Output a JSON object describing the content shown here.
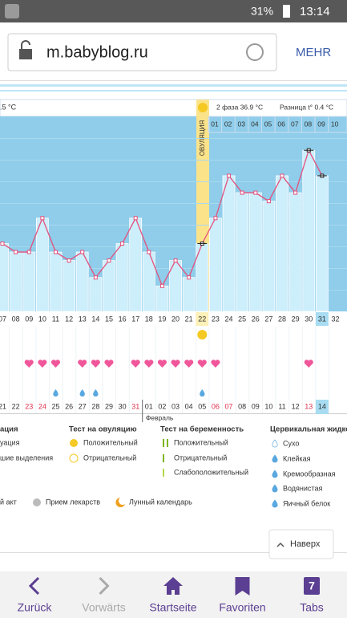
{
  "status_bar": {
    "battery": "31%",
    "time": "13:14"
  },
  "browser": {
    "url": "m.babyblog.ru",
    "menu": "MEHR"
  },
  "chart_data": {
    "type": "line",
    "phase1": ".5 °C",
    "phase2": "2 фаза 36.9 °C",
    "difference": "Разница t° 0.4 °C",
    "ovulation_label": "ОВУЛЯЦИЯ",
    "cycle_days": [
      "01",
      "02",
      "03",
      "04",
      "05",
      "06",
      "07",
      "08",
      "09",
      "10"
    ],
    "categories": [
      "07",
      "08",
      "09",
      "10",
      "11",
      "12",
      "13",
      "14",
      "15",
      "16",
      "17",
      "18",
      "19",
      "20",
      "21",
      "22",
      "23",
      "24",
      "25",
      "26",
      "27",
      "28",
      "29",
      "30",
      "31",
      "32"
    ],
    "values": [
      36.55,
      36.5,
      36.5,
      36.7,
      36.5,
      36.45,
      36.5,
      36.35,
      36.45,
      36.55,
      36.7,
      36.5,
      36.3,
      36.45,
      36.35,
      36.55,
      36.7,
      36.95,
      36.85,
      36.85,
      36.8,
      36.95,
      36.85,
      37.1,
      36.95,
      null
    ],
    "ylim": [
      36.15,
      37.3
    ],
    "color": "#e4507c"
  },
  "markers": {
    "ovulation_test": [
      false,
      false,
      false,
      false,
      false,
      false,
      false,
      false,
      false,
      false,
      false,
      false,
      false,
      false,
      false,
      true,
      false,
      false,
      false,
      false,
      false,
      false,
      false,
      false,
      false,
      false
    ],
    "intercourse": [
      false,
      false,
      true,
      true,
      true,
      false,
      true,
      true,
      true,
      false,
      true,
      true,
      true,
      true,
      true,
      true,
      true,
      false,
      false,
      false,
      false,
      false,
      false,
      true,
      false,
      false
    ],
    "fluid": [
      false,
      false,
      false,
      false,
      true,
      false,
      true,
      true,
      false,
      false,
      false,
      false,
      false,
      false,
      false,
      true,
      false,
      false,
      false,
      false,
      false,
      false,
      false,
      false,
      false,
      false
    ]
  },
  "dates": [
    "21",
    "22",
    "23",
    "24",
    "25",
    "26",
    "27",
    "28",
    "29",
    "30",
    "31",
    "01",
    "02",
    "03",
    "04",
    "05",
    "06",
    "07",
    "08",
    "09",
    "10",
    "11",
    "12",
    "13",
    "14"
  ],
  "month": "Февраль",
  "legend": {
    "col1": [
      "ация",
      "уация",
      "шие выделения"
    ],
    "ovulation_test": {
      "title": "Тест на овуляцию",
      "items": [
        "Положительный",
        "Отрицательный"
      ]
    },
    "pregnancy_test": {
      "title": "Тест на беременность",
      "items": [
        "Положительный",
        "Отрицательный",
        "Слабоположительный"
      ]
    },
    "fluid": {
      "title": "Цервикальная жидко",
      "items": [
        "Сухо",
        "Клейкая",
        "Кремообразная",
        "Водянистая",
        "Яичный белок"
      ]
    },
    "bottom": [
      "й акт",
      "Прием лекарств",
      "Лунный календарь"
    ]
  },
  "scroll_top": "Наверх",
  "nav": [
    "Zurück",
    "Vorwärts",
    "Startseite",
    "Favoriten",
    "Tabs"
  ],
  "tabs_count": "7"
}
